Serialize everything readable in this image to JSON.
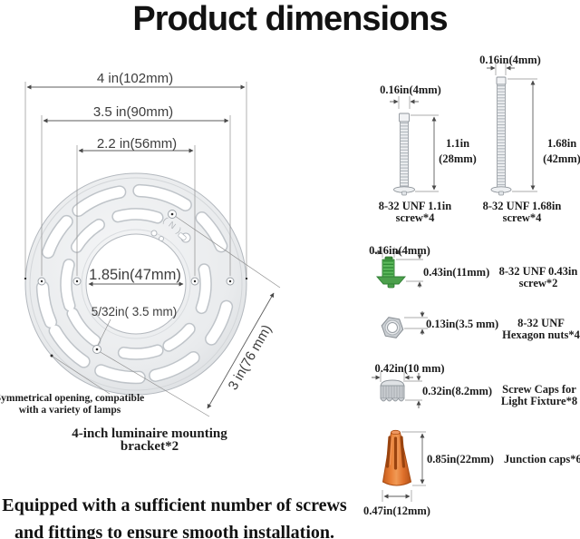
{
  "title": "Product dimensions",
  "bracket": {
    "dims": {
      "outer": "4 in(102mm)",
      "ring": "3.5 in(90mm)",
      "inner_holes": "2.2 in(56mm)",
      "center_hole": "1.85in(47mm)",
      "small_hole": "5/32in( 3.5 mm)",
      "mount_span": "3 in(76 mm)"
    },
    "etch": "( N )",
    "opening_note_line1": "Symmetrical opening, compatible",
    "opening_note_line2": "with a variety of lamps",
    "caption_line1": "4-inch luminaire mounting",
    "caption_line2": "bracket*2"
  },
  "parts": {
    "screw_11": {
      "width": "0.16in(4mm)",
      "height_in": "1.1in",
      "height_mm": "(28mm)",
      "name_line1": "8-32 UNF 1.1in",
      "name_line2": "screw*4"
    },
    "screw_168": {
      "width": "0.16in(4mm)",
      "height_in": "1.68in",
      "height_mm": "(42mm)",
      "name_line1": "8-32 UNF 1.68in",
      "name_line2": "screw*4"
    },
    "screw_043": {
      "width": "0.16in(4mm)",
      "height": "0.43in(11mm)",
      "name_line1": "8-32 UNF 0.43in",
      "name_line2": "screw*2"
    },
    "hex_nut": {
      "height": "0.13in(3.5 mm)",
      "name_line1": "8-32 UNF",
      "name_line2": "Hexagon nuts*4"
    },
    "screw_cap": {
      "width": "0.42in(10 mm)",
      "height": "0.32in(8.2mm)",
      "name_line1": "Screw Caps for",
      "name_line2": "Light Fixture*8"
    },
    "junction_cap": {
      "height": "0.85in(22mm)",
      "width": "0.47in(12mm)",
      "name": "Junction caps*6"
    }
  },
  "footer_line1": "Equipped with a sufficient number of screws",
  "footer_line2": "and fittings to ensure smooth installation.",
  "colors": {
    "junction_orange": "#e0712c",
    "screw_green": "#4ca04c",
    "metal_gray": "#e6e8ea"
  }
}
